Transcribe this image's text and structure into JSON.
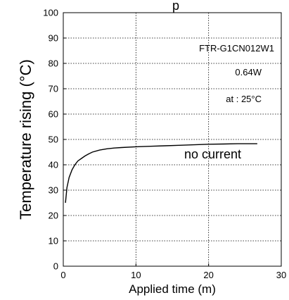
{
  "chart_data": {
    "type": "line",
    "title": "",
    "xlabel": "Applied time (m)",
    "ylabel": "Temperature rising (°C)",
    "xlim": [
      0,
      30
    ],
    "ylim": [
      0,
      100
    ],
    "xticks": [
      0,
      10,
      20,
      30
    ],
    "yticks": [
      0,
      10,
      20,
      30,
      40,
      50,
      60,
      70,
      80,
      90,
      100
    ],
    "grid": true,
    "series": [
      {
        "x": [
          0.3,
          0.5,
          0.8,
          1.2,
          1.6,
          2,
          2.5,
          3,
          3.5,
          4,
          5,
          6,
          7,
          8,
          10,
          12,
          14,
          16,
          18,
          20,
          22,
          24,
          26.7
        ],
        "y": [
          25,
          31,
          35,
          38,
          40,
          41.5,
          42.5,
          43.5,
          44.3,
          45,
          45.8,
          46.3,
          46.6,
          46.8,
          47.1,
          47.3,
          47.5,
          47.7,
          47.9,
          48.1,
          48.2,
          48.3,
          48.3
        ]
      }
    ],
    "annotations": {
      "model": "FTR-G1CN012W1",
      "power": "0.64W",
      "condition": "at : 25°C",
      "curve_label": "no current"
    },
    "top_fragment": "p"
  }
}
